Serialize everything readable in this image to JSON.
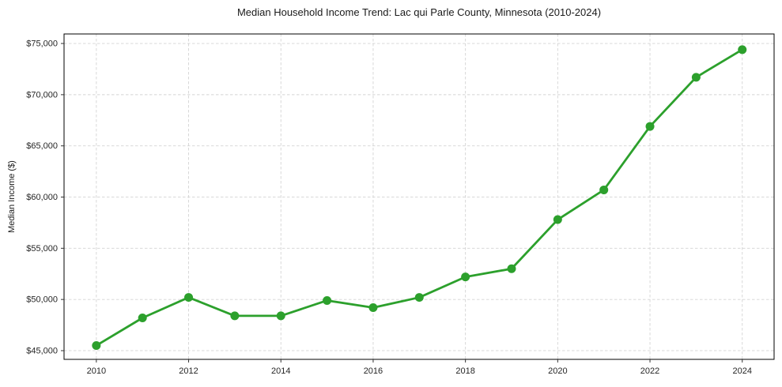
{
  "chart_data": {
    "type": "line",
    "title": "Median Household Income Trend: Lac qui Parle County, Minnesota (2010-2024)",
    "xlabel": "",
    "ylabel": "Median Income ($)",
    "x": [
      2010,
      2011,
      2012,
      2013,
      2014,
      2015,
      2016,
      2017,
      2018,
      2019,
      2020,
      2021,
      2022,
      2023,
      2024
    ],
    "values": [
      45500,
      48200,
      50200,
      48400,
      48400,
      49900,
      49200,
      50200,
      52200,
      53000,
      57800,
      60700,
      66900,
      71700,
      74400
    ],
    "xticks": [
      2010,
      2012,
      2014,
      2016,
      2018,
      2020,
      2022,
      2024
    ],
    "xtick_labels": [
      "2010",
      "2012",
      "2014",
      "2016",
      "2018",
      "2020",
      "2022",
      "2024"
    ],
    "yticks": [
      45000,
      50000,
      55000,
      60000,
      65000,
      70000,
      75000
    ],
    "ytick_labels": [
      "$45,000",
      "$50,000",
      "$55,000",
      "$60,000",
      "$65,000",
      "$70,000",
      "$75,000"
    ],
    "xlim": [
      2009.3,
      2024.69
    ],
    "ylim": [
      44150,
      75930
    ],
    "grid": true,
    "grid_style": "dashed",
    "legend": null,
    "line_color": "#2ca02c",
    "marker": "circle",
    "grid_color": "#d4d4d4",
    "background": "#ffffff"
  }
}
